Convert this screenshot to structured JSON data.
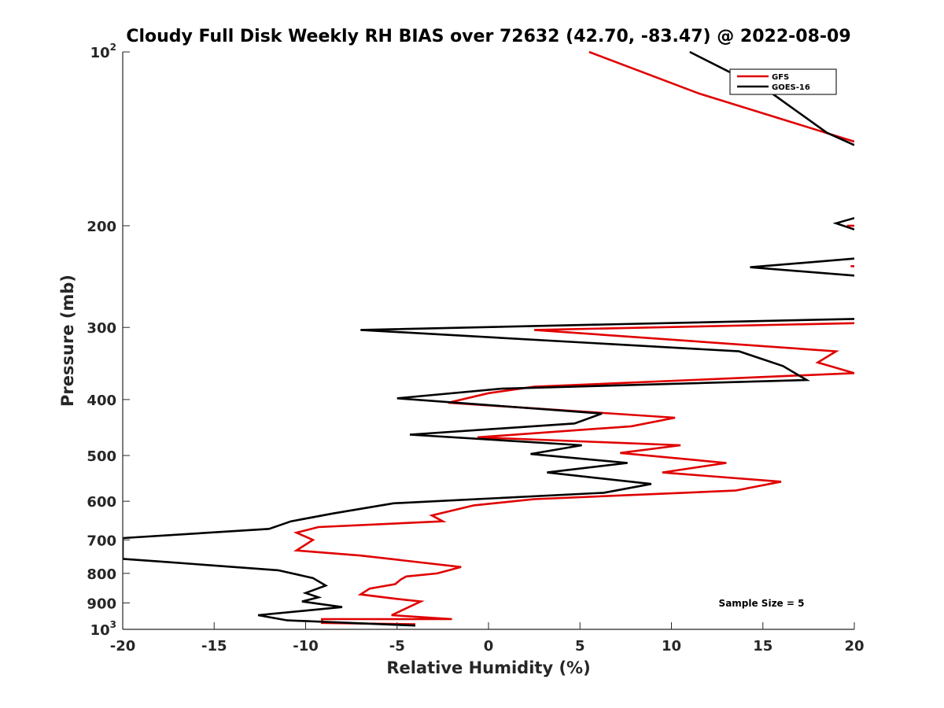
{
  "chart_data": {
    "type": "line",
    "title": "Cloudy Full Disk Weekly RH BIAS over 72632 (42.70, -83.47) @ 2022-08-09",
    "xlabel": "Relative Humidity (%)",
    "ylabel": "Pressure (mb)",
    "xlim": [
      -20,
      20
    ],
    "ylim": [
      100,
      1000
    ],
    "y_scale": "log",
    "y_reversed": true,
    "x_ticks": [
      "-20",
      "-15",
      "-10",
      "-5",
      "0",
      "5",
      "10",
      "15",
      "20"
    ],
    "y_ticks": [
      {
        "value": 100,
        "base": "10",
        "exp": "2"
      },
      {
        "value": 200,
        "base": "200",
        "exp": ""
      },
      {
        "value": 300,
        "base": "300",
        "exp": ""
      },
      {
        "value": 400,
        "base": "400",
        "exp": ""
      },
      {
        "value": 500,
        "base": "500",
        "exp": ""
      },
      {
        "value": 600,
        "base": "600",
        "exp": ""
      },
      {
        "value": 700,
        "base": "700",
        "exp": ""
      },
      {
        "value": 800,
        "base": "800",
        "exp": ""
      },
      {
        "value": 900,
        "base": "900",
        "exp": ""
      },
      {
        "value": 1000,
        "base": "10",
        "exp": "3"
      }
    ],
    "legend_position": "top-right",
    "annotation": "Sample Size = 5",
    "series": [
      {
        "name": "GFS",
        "color": "#e00000",
        "points": [
          [
            -4.0,
            980
          ],
          [
            -9.1,
            975
          ],
          [
            -9.1,
            960
          ],
          [
            -2.0,
            960
          ],
          [
            -5.3,
            945
          ],
          [
            -3.7,
            895
          ],
          [
            -5.1,
            885
          ],
          [
            -7.0,
            870
          ],
          [
            -6.5,
            850
          ],
          [
            -5.1,
            835
          ],
          [
            -4.8,
            820
          ],
          [
            -4.5,
            810
          ],
          [
            -2.8,
            800
          ],
          [
            -1.5,
            780
          ],
          [
            -7.0,
            745
          ],
          [
            -10.5,
            730
          ],
          [
            -9.6,
            700
          ],
          [
            -10.5,
            680
          ],
          [
            -9.3,
            665
          ],
          [
            -2.5,
            650
          ],
          [
            -3.1,
            635
          ],
          [
            -0.8,
            610
          ],
          [
            2.5,
            595
          ],
          [
            13.5,
            575
          ],
          [
            16.0,
            555
          ],
          [
            9.5,
            535
          ],
          [
            13.0,
            515
          ],
          [
            7.2,
            495
          ],
          [
            10.5,
            480
          ],
          [
            -0.6,
            465
          ],
          [
            7.8,
            445
          ],
          [
            10.2,
            430
          ],
          [
            -2.2,
            405
          ],
          [
            0.0,
            390
          ],
          [
            2.5,
            380
          ],
          [
            20.0,
            360
          ],
          [
            18.0,
            345
          ],
          [
            19.0,
            330
          ],
          [
            2.5,
            303
          ],
          [
            20.0,
            295
          ]
        ],
        "upper_points": [
          [
            5.5,
            100
          ],
          [
            11.5,
            118
          ],
          [
            20.0,
            143
          ]
        ],
        "marks": [
          [
            [
              19.6,
              200
            ],
            [
              20.0,
              200
            ]
          ],
          [
            [
              19.8,
              235
            ],
            [
              20.0,
              235
            ]
          ]
        ]
      },
      {
        "name": "GOES-16",
        "color": "#000000",
        "points": [
          [
            -4.0,
            985
          ],
          [
            -11.0,
            965
          ],
          [
            -12.6,
            945
          ],
          [
            -8.0,
            915
          ],
          [
            -10.2,
            895
          ],
          [
            -9.3,
            880
          ],
          [
            -10.0,
            865
          ],
          [
            -8.9,
            840
          ],
          [
            -9.6,
            815
          ],
          [
            -11.5,
            790
          ],
          [
            -17.5,
            765
          ],
          [
            -20.0,
            755
          ],
          [
            -20.0,
            695
          ],
          [
            -12.0,
            670
          ],
          [
            -10.8,
            650
          ],
          [
            -8.5,
            630
          ],
          [
            -5.2,
            605
          ],
          [
            6.3,
            580
          ],
          [
            8.9,
            560
          ],
          [
            3.2,
            535
          ],
          [
            7.6,
            515
          ],
          [
            2.3,
            497
          ],
          [
            5.1,
            480
          ],
          [
            -4.3,
            460
          ],
          [
            4.7,
            440
          ],
          [
            6.2,
            423
          ],
          [
            -5.0,
            398
          ],
          [
            0.7,
            383
          ],
          [
            17.4,
            370
          ],
          [
            16.1,
            350
          ],
          [
            13.7,
            330
          ],
          [
            -7.0,
            303
          ],
          [
            20.0,
            290
          ]
        ],
        "upper_points": [
          [
            11.0,
            100
          ],
          [
            15.5,
            118
          ],
          [
            18.5,
            138
          ],
          [
            20.0,
            145
          ]
        ],
        "marks": [
          [
            [
              20.0,
              194
            ],
            [
              19.0,
              198
            ],
            [
              20.0,
              203
            ]
          ],
          [
            [
              20.0,
              228
            ],
            [
              14.3,
              236
            ],
            [
              20.0,
              244
            ]
          ]
        ]
      }
    ]
  }
}
